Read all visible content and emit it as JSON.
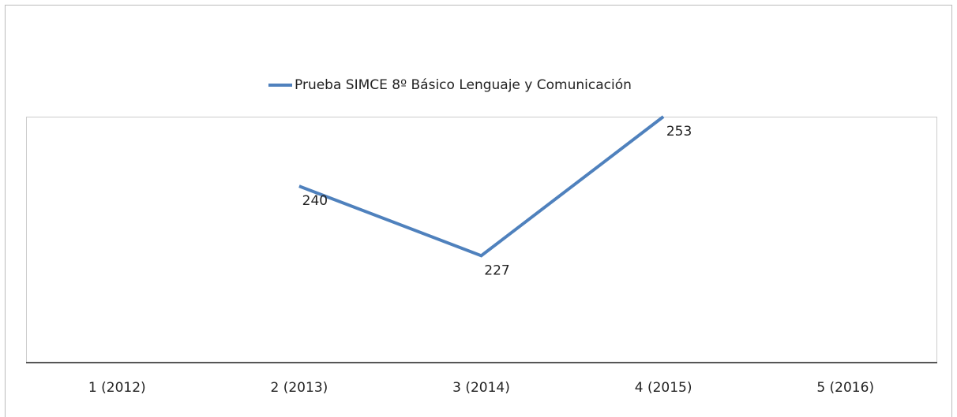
{
  "chart_data": {
    "type": "line",
    "categories": [
      "1 (2012)",
      "2 (2013)",
      "3 (2014)",
      "4 (2015)",
      "5 (2016)"
    ],
    "series": [
      {
        "name": "Prueba SIMCE 8º Básico Lenguaje y Comunicación",
        "color": "#4f81bd",
        "values": [
          null,
          240,
          227,
          253,
          null
        ]
      }
    ],
    "ylim": [
      207,
      253
    ]
  }
}
